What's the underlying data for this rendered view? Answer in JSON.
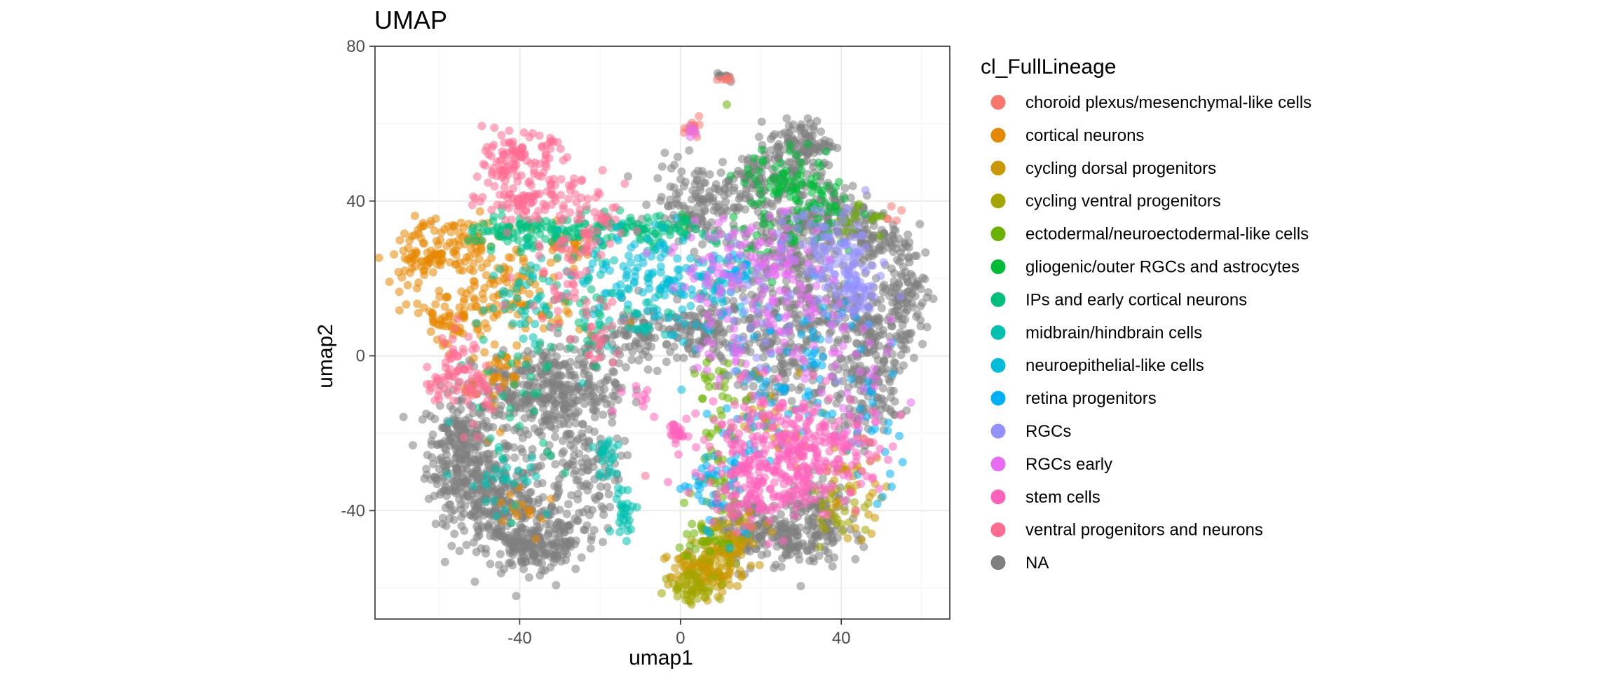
{
  "chart_data": {
    "type": "scatter",
    "title": "UMAP",
    "xlabel": "umap1",
    "ylabel": "umap2",
    "xlim": [
      -76,
      67
    ],
    "ylim": [
      -68,
      80
    ],
    "xticks": [
      -40,
      0,
      40
    ],
    "xtick_labels": [
      "-40",
      "0",
      "40"
    ],
    "yticks": [
      -40,
      0,
      40,
      80
    ],
    "ytick_labels": [
      "-40",
      "0",
      "40",
      "80"
    ],
    "grid": true,
    "legend_title": "cl_FullLineage",
    "legend_position": "right",
    "series": [
      {
        "name": "choroid plexus/mesenchymal-like cells",
        "color": "#F8766D",
        "clusters": [
          [
            3,
            60,
            1.5,
            1.5,
            15
          ],
          [
            12,
            71,
            1.5,
            1,
            6
          ],
          [
            52,
            37,
            1,
            1,
            5
          ]
        ]
      },
      {
        "name": "cortical neurons",
        "color": "#E58700",
        "clusters": [
          [
            -64,
            26,
            4,
            4,
            80
          ],
          [
            -54,
            29,
            5,
            3,
            60
          ],
          [
            -56,
            10,
            6,
            4,
            80
          ],
          [
            -45,
            18,
            4,
            4,
            40
          ],
          [
            -34,
            14,
            5,
            6,
            40
          ],
          [
            -28,
            28,
            4,
            3,
            30
          ],
          [
            -46,
            -5,
            4,
            6,
            40
          ],
          [
            -40,
            -40,
            4,
            4,
            15
          ]
        ]
      },
      {
        "name": "cycling dorsal progenitors",
        "color": "#C99800",
        "clusters": [
          [
            5,
            -56,
            4,
            3,
            90
          ],
          [
            10,
            -52,
            4,
            3,
            60
          ],
          [
            15,
            -47,
            3,
            3,
            30
          ],
          [
            43,
            -34,
            4,
            6,
            40
          ],
          [
            24,
            -15,
            6,
            6,
            30
          ]
        ]
      },
      {
        "name": "cycling ventral progenitors",
        "color": "#A3A500",
        "clusters": [
          [
            3,
            -60,
            3,
            2,
            50
          ],
          [
            40,
            -40,
            4,
            4,
            25
          ],
          [
            8,
            -50,
            4,
            4,
            30
          ]
        ]
      },
      {
        "name": "ectodermal/neuroectodermal-like cells",
        "color": "#6BB100",
        "clusters": [
          [
            11,
            65,
            0.5,
            0.5,
            1
          ],
          [
            10,
            -30,
            3,
            8,
            40
          ],
          [
            10,
            -5,
            3,
            4,
            25
          ],
          [
            5,
            -45,
            3,
            4,
            20
          ],
          [
            44,
            35,
            3,
            3,
            15
          ]
        ]
      },
      {
        "name": "gliogenic/outer RGCs and astrocytes",
        "color": "#00BA38",
        "clusters": [
          [
            27,
            45,
            6,
            5,
            70
          ],
          [
            34,
            38,
            5,
            5,
            40
          ],
          [
            0,
            35,
            1,
            1,
            5
          ],
          [
            18,
            30,
            5,
            5,
            20
          ]
        ]
      },
      {
        "name": "IPs and early cortical neurons",
        "color": "#00BF7D",
        "clusters": [
          [
            -32,
            32,
            10,
            2,
            90
          ],
          [
            -10,
            32,
            9,
            2,
            80
          ],
          [
            -45,
            32,
            5,
            2,
            40
          ],
          [
            -20,
            12,
            8,
            6,
            40
          ],
          [
            -40,
            -10,
            6,
            10,
            30
          ]
        ]
      },
      {
        "name": "midbrain/hindbrain cells",
        "color": "#00C0AF",
        "clusters": [
          [
            -14,
            -40,
            1.5,
            3,
            30
          ],
          [
            -18,
            -27,
            2,
            4,
            25
          ],
          [
            -38,
            15,
            5,
            6,
            40
          ],
          [
            -45,
            -30,
            6,
            6,
            30
          ],
          [
            -25,
            20,
            8,
            8,
            30
          ],
          [
            -10,
            10,
            5,
            5,
            20
          ]
        ]
      },
      {
        "name": "neuroepithelial-like cells",
        "color": "#00BCD8",
        "clusters": [
          [
            -3,
            22,
            6,
            5,
            60
          ],
          [
            8,
            18,
            5,
            5,
            40
          ],
          [
            -15,
            20,
            5,
            5,
            30
          ],
          [
            5,
            8,
            6,
            6,
            30
          ]
        ]
      },
      {
        "name": "retina progenitors",
        "color": "#00B0F6",
        "clusters": [
          [
            14,
            23,
            2,
            2,
            20
          ],
          [
            12,
            -30,
            5,
            8,
            40
          ],
          [
            25,
            -10,
            6,
            8,
            40
          ],
          [
            35,
            0,
            5,
            10,
            30
          ],
          [
            48,
            -20,
            4,
            10,
            25
          ],
          [
            5,
            -35,
            4,
            5,
            15
          ]
        ]
      },
      {
        "name": "RGCs",
        "color": "#9590FF",
        "clusters": [
          [
            40,
            23,
            5,
            6,
            80
          ],
          [
            44,
            15,
            3,
            4,
            40
          ],
          [
            30,
            30,
            5,
            5,
            30
          ],
          [
            20,
            10,
            8,
            8,
            30
          ]
        ]
      },
      {
        "name": "RGCs early",
        "color": "#E76BF3",
        "clusters": [
          [
            25,
            23,
            6,
            6,
            60
          ],
          [
            10,
            25,
            6,
            6,
            50
          ],
          [
            15,
            5,
            6,
            8,
            40
          ],
          [
            30,
            10,
            6,
            8,
            30
          ],
          [
            45,
            -10,
            5,
            8,
            30
          ],
          [
            3,
            58,
            1,
            1,
            5
          ]
        ]
      },
      {
        "name": "stem cells",
        "color": "#FF62BC",
        "clusters": [
          [
            25,
            -25,
            9,
            8,
            300
          ],
          [
            15,
            -35,
            5,
            6,
            60
          ],
          [
            40,
            -25,
            6,
            6,
            60
          ],
          [
            0,
            -20,
            1.5,
            2,
            25
          ],
          [
            -10,
            -10,
            3,
            3,
            10
          ]
        ]
      },
      {
        "name": "ventral progenitors and neurons",
        "color": "#FF6C91",
        "clusters": [
          [
            -40,
            53,
            4,
            2,
            60
          ],
          [
            -42,
            48,
            5,
            2,
            40
          ],
          [
            -40,
            40,
            5,
            2,
            50
          ],
          [
            -30,
            40,
            8,
            5,
            60
          ],
          [
            -25,
            30,
            6,
            5,
            40
          ],
          [
            -60,
            -8,
            2,
            2,
            20
          ],
          [
            -55,
            0,
            3,
            4,
            40
          ],
          [
            -50,
            -10,
            3,
            4,
            30
          ],
          [
            -30,
            15,
            5,
            5,
            30
          ],
          [
            -20,
            5,
            4,
            4,
            20
          ],
          [
            -9,
            -30,
            0.5,
            0.5,
            1
          ]
        ]
      },
      {
        "name": "NA",
        "color": "#7F7F7F",
        "clusters": [
          [
            -55,
            -25,
            4,
            8,
            250
          ],
          [
            -45,
            -38,
            6,
            6,
            250
          ],
          [
            -38,
            -50,
            5,
            3,
            120
          ],
          [
            -30,
            -45,
            5,
            5,
            100
          ],
          [
            -25,
            -28,
            5,
            6,
            100
          ],
          [
            -40,
            -10,
            6,
            6,
            150
          ],
          [
            -30,
            -10,
            5,
            5,
            150
          ],
          [
            -20,
            0,
            6,
            5,
            60
          ],
          [
            -8,
            6,
            6,
            4,
            80
          ],
          [
            5,
            5,
            5,
            4,
            80
          ],
          [
            5,
            40,
            6,
            5,
            120
          ],
          [
            20,
            45,
            8,
            4,
            130
          ],
          [
            30,
            55,
            4,
            3,
            100
          ],
          [
            40,
            35,
            6,
            5,
            120
          ],
          [
            50,
            30,
            4,
            4,
            60
          ],
          [
            55,
            15,
            3,
            7,
            120
          ],
          [
            48,
            0,
            4,
            6,
            80
          ],
          [
            45,
            -12,
            4,
            5,
            80
          ],
          [
            25,
            30,
            6,
            6,
            120
          ],
          [
            20,
            10,
            8,
            8,
            150
          ],
          [
            35,
            15,
            5,
            5,
            80
          ],
          [
            25,
            -5,
            6,
            5,
            80
          ],
          [
            25,
            -47,
            8,
            4,
            200
          ],
          [
            35,
            -40,
            5,
            4,
            80
          ],
          [
            15,
            -42,
            4,
            4,
            40
          ],
          [
            -20,
            -10,
            4,
            3,
            30
          ],
          [
            11,
            72,
            1,
            0.8,
            10
          ],
          [
            45,
            10,
            4,
            4,
            60
          ]
        ]
      }
    ]
  }
}
